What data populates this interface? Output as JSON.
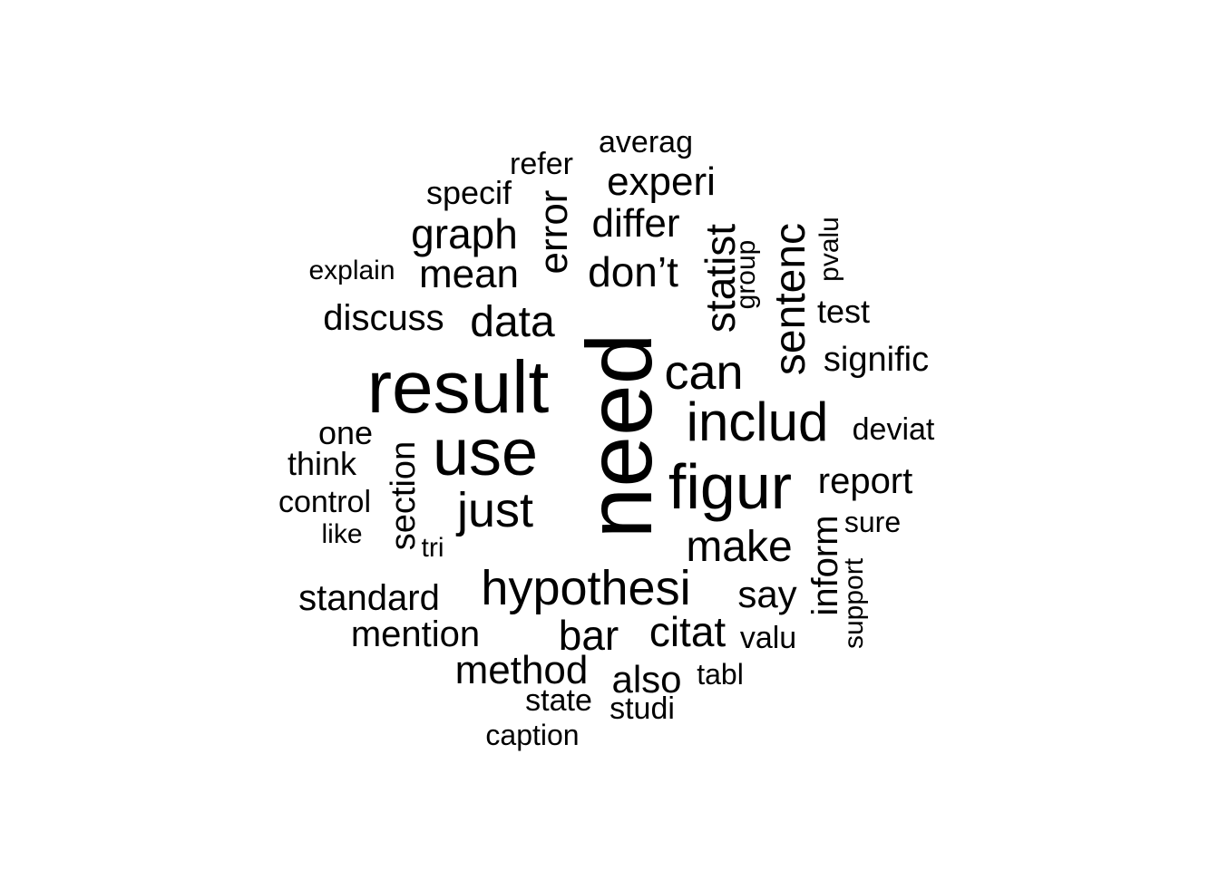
{
  "words": [
    {
      "text": "need"
    },
    {
      "text": "result"
    },
    {
      "text": "use"
    },
    {
      "text": "figur"
    },
    {
      "text": "includ"
    },
    {
      "text": "hypothesi"
    },
    {
      "text": "just"
    },
    {
      "text": "can"
    },
    {
      "text": "sentenc"
    },
    {
      "text": "statist"
    },
    {
      "text": "make"
    },
    {
      "text": "data"
    },
    {
      "text": "don’t"
    },
    {
      "text": "mean"
    },
    {
      "text": "graph"
    },
    {
      "text": "error"
    },
    {
      "text": "differ"
    },
    {
      "text": "experi"
    },
    {
      "text": "bar"
    },
    {
      "text": "citat"
    },
    {
      "text": "method"
    },
    {
      "text": "also"
    },
    {
      "text": "say"
    },
    {
      "text": "inform"
    },
    {
      "text": "report"
    },
    {
      "text": "section"
    },
    {
      "text": "discuss"
    },
    {
      "text": "standard"
    },
    {
      "text": "mention"
    },
    {
      "text": "signific"
    },
    {
      "text": "specif"
    },
    {
      "text": "refer"
    },
    {
      "text": "averag"
    },
    {
      "text": "one"
    },
    {
      "text": "think"
    },
    {
      "text": "control"
    },
    {
      "text": "test"
    },
    {
      "text": "deviat"
    },
    {
      "text": "sure"
    },
    {
      "text": "valu"
    },
    {
      "text": "tabl"
    },
    {
      "text": "state"
    },
    {
      "text": "studi"
    },
    {
      "text": "caption"
    },
    {
      "text": "explain"
    },
    {
      "text": "like"
    },
    {
      "text": "tri"
    },
    {
      "text": "group"
    },
    {
      "text": "pvalu"
    },
    {
      "text": "support"
    }
  ]
}
